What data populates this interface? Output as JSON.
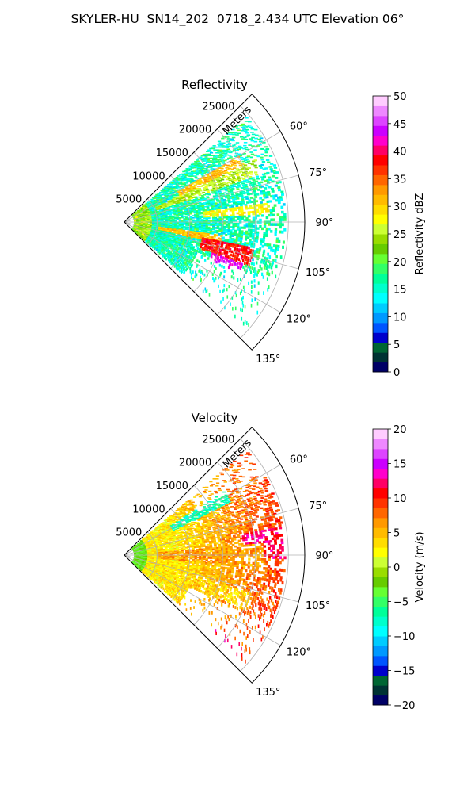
{
  "figure": {
    "title": "SKYLER-HU  SN14_202  0718_2.434 UTC Elevation 06°"
  },
  "chart_data": [
    {
      "type": "heatmap",
      "projection": "polar-sector",
      "title": "Reflectivity",
      "radial_label": "Meters",
      "radial_ticks": [
        5000,
        10000,
        15000,
        20000,
        25000
      ],
      "radial_tick_labels": [
        "5000",
        "10000",
        "15000",
        "20000",
        "25000"
      ],
      "radial_range": [
        0,
        27500
      ],
      "azimuth_range_deg": [
        45,
        135
      ],
      "azimuth_ticks": [
        60,
        75,
        90,
        105,
        120,
        135
      ],
      "azimuth_tick_labels": [
        "60°",
        "75°",
        "90°",
        "105°",
        "120°",
        "135°"
      ],
      "grid": true,
      "colorbar": {
        "label": "Reflectivity dBZ",
        "range": [
          0,
          50
        ],
        "ticks": [
          0,
          5,
          10,
          15,
          20,
          25,
          30,
          35,
          40,
          45,
          50
        ],
        "tick_labels": [
          "0",
          "5",
          "10",
          "15",
          "20",
          "25",
          "30",
          "35",
          "40",
          "45",
          "50"
        ],
        "colors": [
          "#000066",
          "#003333",
          "#006633",
          "#0000cc",
          "#0055ff",
          "#0099ff",
          "#00ccff",
          "#00ffff",
          "#00ffcc",
          "#00ff99",
          "#33ff66",
          "#66ff33",
          "#66cc00",
          "#99dd00",
          "#ccff33",
          "#ffff00",
          "#ffdd00",
          "#ffbb00",
          "#ff9900",
          "#ff6600",
          "#ff3300",
          "#ff0000",
          "#ff0066",
          "#ff00cc",
          "#cc00ff",
          "#dd44ff",
          "#ee88ff",
          "#ffccff"
        ]
      },
      "features": [
        {
          "az": 62,
          "r0": 9000,
          "r1": 20000,
          "w": 2.5,
          "v": 33
        },
        {
          "az": 67,
          "r0": 5000,
          "r1": 22000,
          "w": 3.0,
          "v": 27
        },
        {
          "az": 84,
          "r0": 12000,
          "r1": 22000,
          "w": 2.5,
          "v": 30
        },
        {
          "az": 100,
          "r0": 5000,
          "r1": 15000,
          "w": 2.5,
          "v": 33
        },
        {
          "az": 105,
          "r0": 12000,
          "r1": 20000,
          "w": 4.0,
          "v": 40
        },
        {
          "az": 111,
          "r0": 14000,
          "r1": 19000,
          "w": 2.5,
          "v": 45
        }
      ]
    },
    {
      "type": "heatmap",
      "projection": "polar-sector",
      "title": "Velocity",
      "radial_label": "Meters",
      "radial_ticks": [
        5000,
        10000,
        15000,
        20000,
        25000
      ],
      "radial_tick_labels": [
        "5000",
        "10000",
        "15000",
        "20000",
        "25000"
      ],
      "radial_range": [
        0,
        27500
      ],
      "azimuth_range_deg": [
        45,
        135
      ],
      "azimuth_ticks": [
        60,
        75,
        90,
        105,
        120,
        135
      ],
      "azimuth_tick_labels": [
        "60°",
        "75°",
        "90°",
        "105°",
        "120°",
        "135°"
      ],
      "grid": true,
      "colorbar": {
        "label": "Velocity (m/s)",
        "range": [
          -20,
          20
        ],
        "ticks": [
          -20,
          -15,
          -10,
          -5,
          0,
          5,
          10,
          15,
          20
        ],
        "tick_labels": [
          "−20",
          "−15",
          "−10",
          "−5",
          "0",
          "5",
          "10",
          "15",
          "20"
        ],
        "colors": [
          "#000066",
          "#003333",
          "#006633",
          "#0000cc",
          "#0055ff",
          "#0099ff",
          "#00ccff",
          "#00ffff",
          "#00ffcc",
          "#00ff99",
          "#33ff66",
          "#66ff33",
          "#66cc00",
          "#99dd00",
          "#ccff33",
          "#ffff00",
          "#ffdd00",
          "#ffbb00",
          "#ff9900",
          "#ff6600",
          "#ff3300",
          "#ff0000",
          "#ff0066",
          "#ff00cc",
          "#cc00ff",
          "#dd44ff",
          "#ee88ff",
          "#ffccff"
        ]
      },
      "features": [
        {
          "az": 60,
          "r0": 8000,
          "r1": 18000,
          "w": 3.0,
          "v": -5
        },
        {
          "az": 85,
          "r0": 18000,
          "r1": 25000,
          "w": 6.0,
          "v": 14
        },
        {
          "az": 130,
          "r0": 17000,
          "r1": 23000,
          "w": 3.0,
          "v": 14
        },
        {
          "az": 90,
          "r0": 5000,
          "r1": 21000,
          "w": 5.0,
          "v": 8
        },
        {
          "az": 110,
          "r0": 12000,
          "r1": 20000,
          "w": 4.0,
          "v": 6
        }
      ]
    }
  ]
}
